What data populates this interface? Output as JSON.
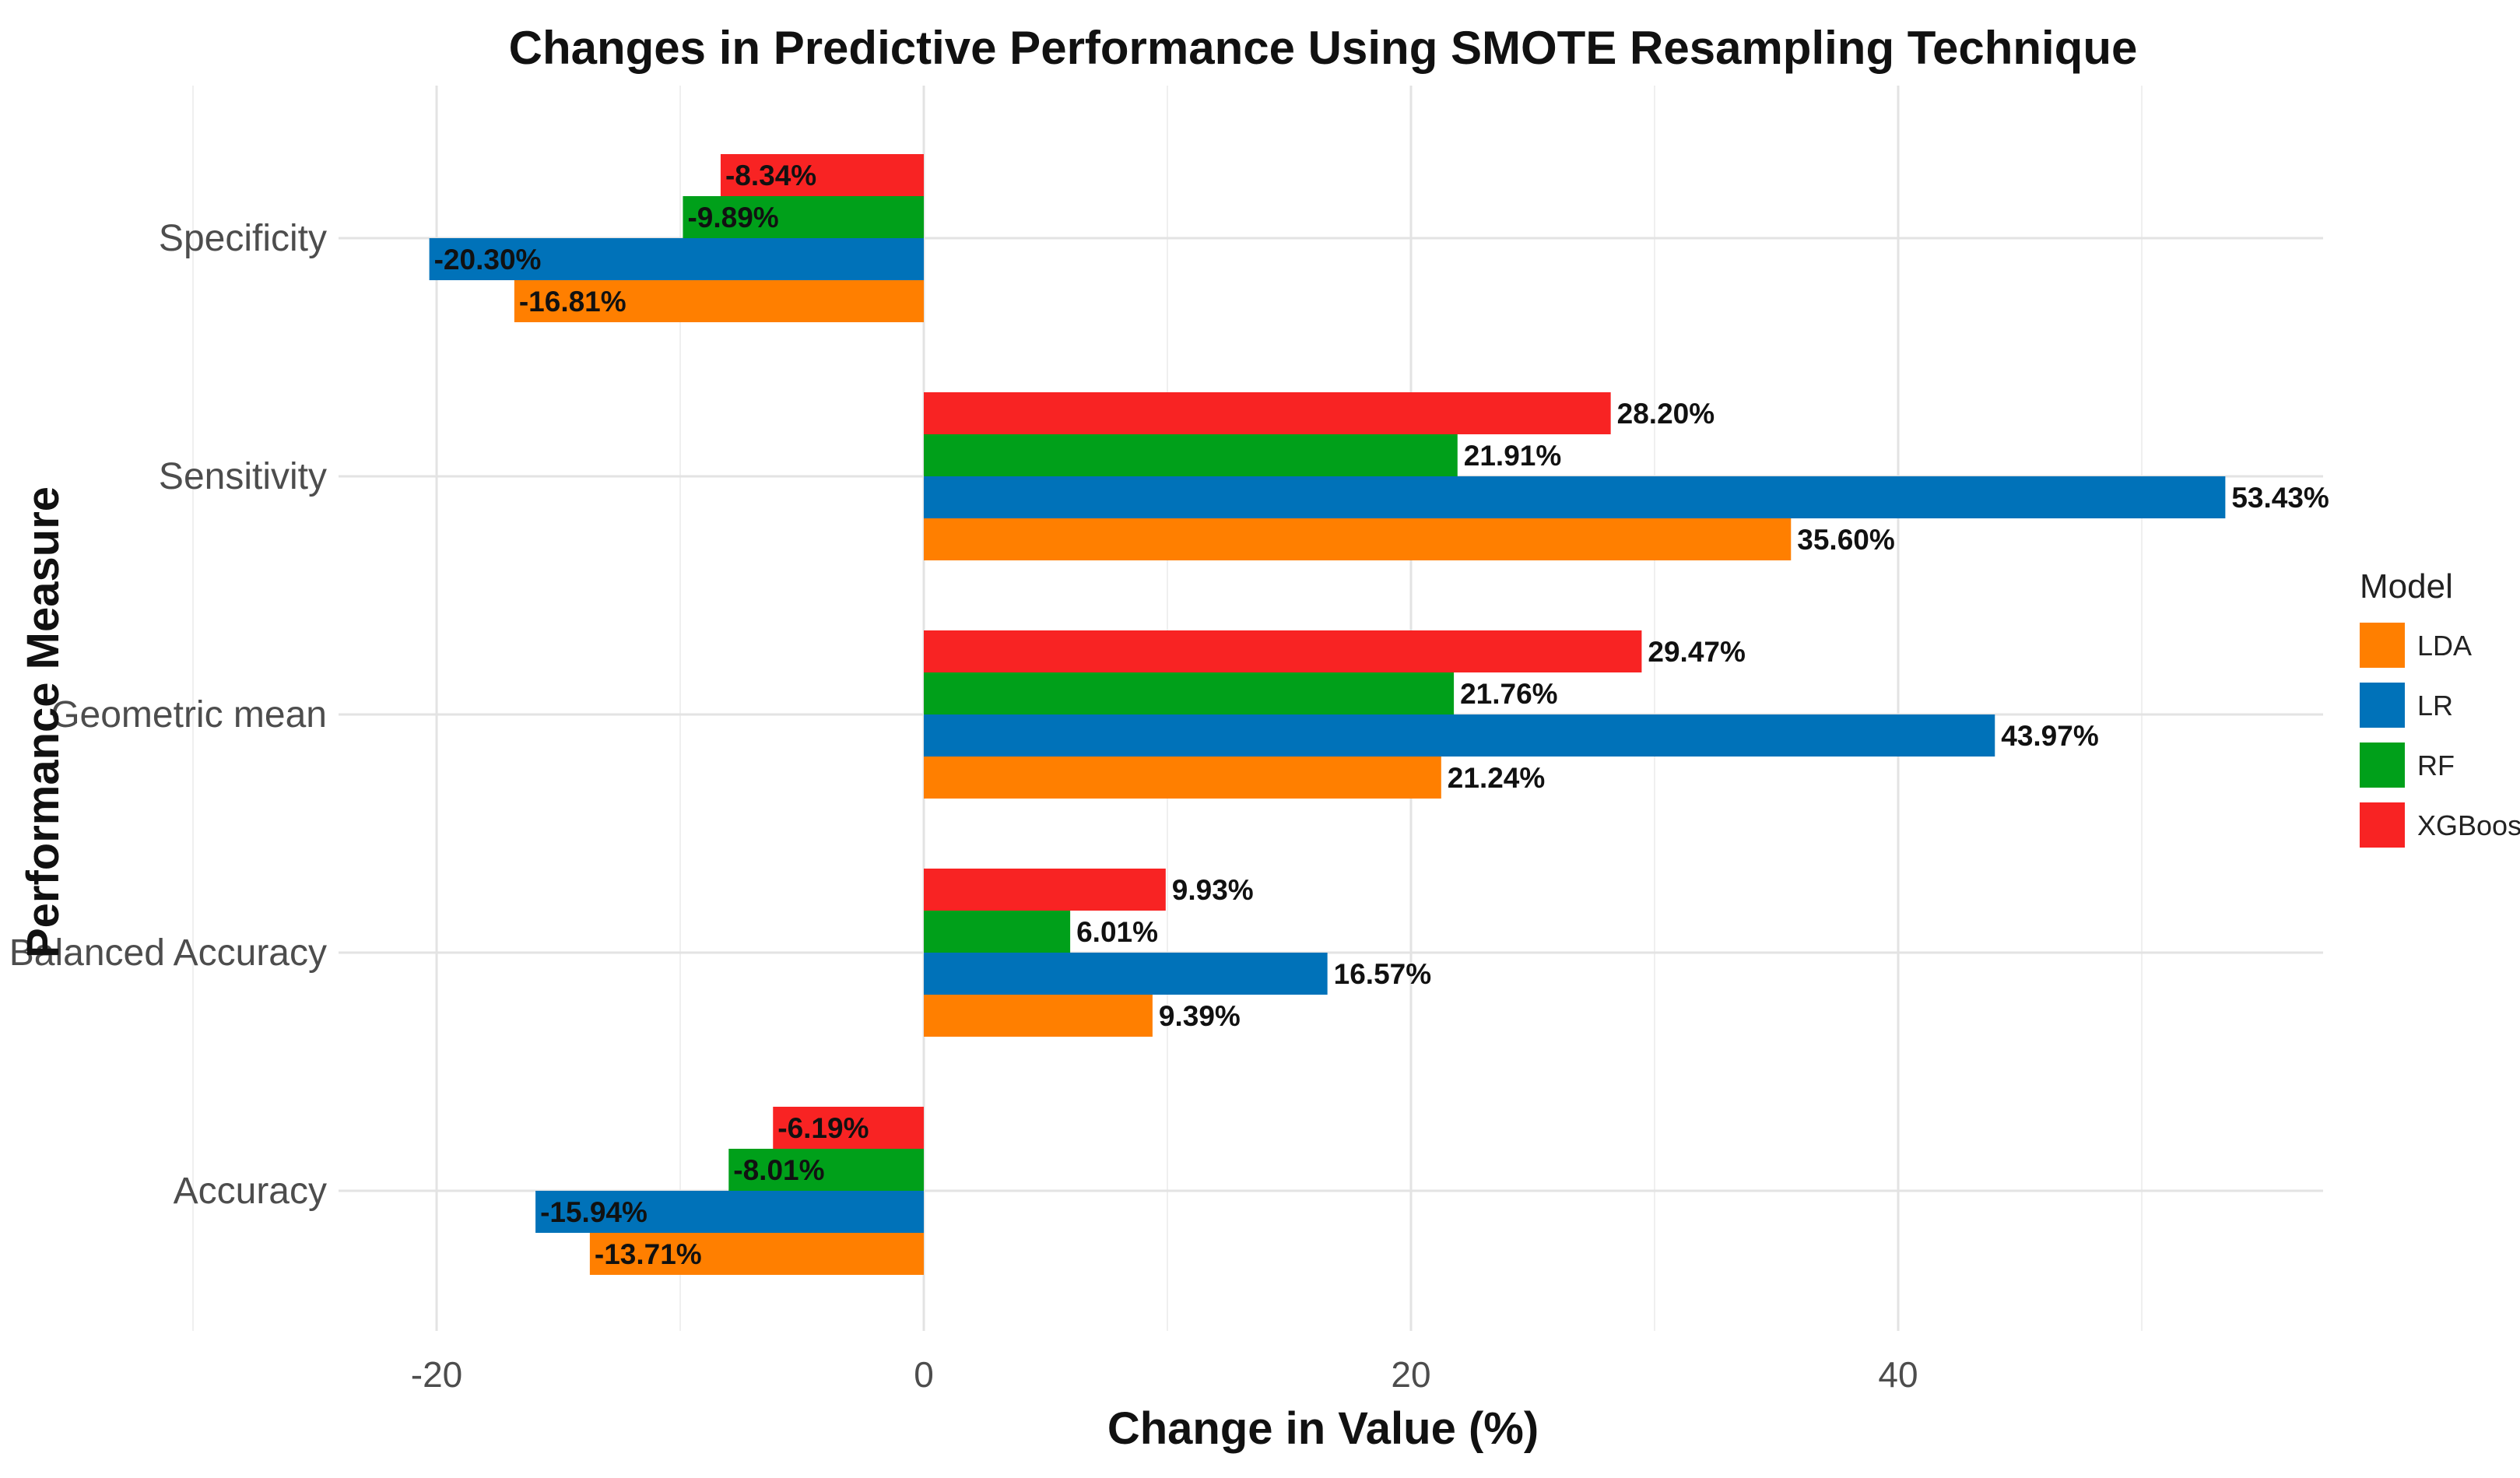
{
  "chart_data": {
    "type": "bar",
    "orientation": "horizontal",
    "title": "Changes in Predictive Performance Using SMOTE Resampling Technique",
    "xlabel": "Change in Value (%)",
    "ylabel": "Performance Measure",
    "xlim": [
      -30,
      57
    ],
    "xticks": [
      -20,
      0,
      20,
      40
    ],
    "grid": true,
    "legend": {
      "title": "Model",
      "position": "right"
    },
    "categories": [
      "Accuracy",
      "Balanced Accuracy",
      "Geometric mean",
      "Sensitivity",
      "Specificity"
    ],
    "series": [
      {
        "name": "LDA",
        "color": "#FF7F00",
        "values": [
          -13.71,
          9.39,
          21.24,
          35.6,
          -16.81
        ],
        "labels": [
          "-13.71%",
          "9.39%",
          "21.24%",
          "35.60%",
          "-16.81%"
        ]
      },
      {
        "name": "LR",
        "color": "#0072B9",
        "values": [
          -15.94,
          16.57,
          43.97,
          53.43,
          -20.3
        ],
        "labels": [
          "-15.94%",
          "16.57%",
          "43.97%",
          "53.43%",
          "-20.30%"
        ]
      },
      {
        "name": "RF",
        "color": "#00A01A",
        "values": [
          -8.01,
          6.01,
          21.76,
          21.91,
          -9.89
        ],
        "labels": [
          "-8.01%",
          "6.01%",
          "21.76%",
          "21.91%",
          "-9.89%"
        ]
      },
      {
        "name": "XGBoost",
        "color": "#F82323",
        "values": [
          -6.19,
          9.93,
          29.47,
          28.2,
          -8.34
        ],
        "labels": [
          "-6.19%",
          "9.93%",
          "29.47%",
          "28.20%",
          "-8.34%"
        ]
      }
    ]
  }
}
